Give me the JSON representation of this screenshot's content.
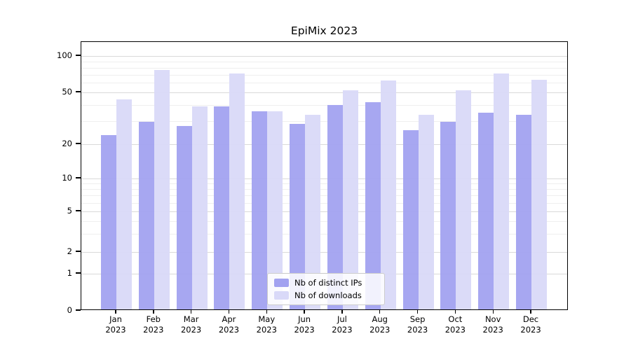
{
  "chart_data": {
    "type": "bar",
    "title": "EpiMix 2023",
    "categories": [
      "Jan 2023",
      "Feb 2023",
      "Mar 2023",
      "Apr 2023",
      "May 2023",
      "Jun 2023",
      "Jul 2023",
      "Aug 2023",
      "Sep 2023",
      "Oct 2023",
      "Nov 2023",
      "Dec 2023"
    ],
    "series": [
      {
        "name": "Nb of distinct IPs",
        "color": "#a2a2f0",
        "values": [
          23,
          29,
          27,
          38,
          35,
          28,
          39,
          41,
          25,
          29,
          34,
          33
        ]
      },
      {
        "name": "Nb of downloads",
        "color": "#d9d9f8",
        "values": [
          43,
          75,
          38,
          70,
          35,
          33,
          51,
          61,
          33,
          51,
          70,
          62
        ]
      }
    ],
    "xlabel": "",
    "ylabel": "",
    "y_axis": {
      "scale": "log-like with 0 baseline",
      "tick_values": [
        0,
        1,
        2,
        5,
        10,
        20,
        50,
        100
      ],
      "tick_labels": [
        "0",
        "1",
        "2",
        "5",
        "10",
        "20",
        "50",
        "100"
      ],
      "minor_gridline_values": [
        3,
        4,
        6,
        7,
        8,
        9,
        30,
        40,
        60,
        70,
        80,
        90
      ],
      "ylim": [
        0,
        130
      ]
    },
    "grid": true,
    "legend": {
      "position": "lower center"
    }
  }
}
